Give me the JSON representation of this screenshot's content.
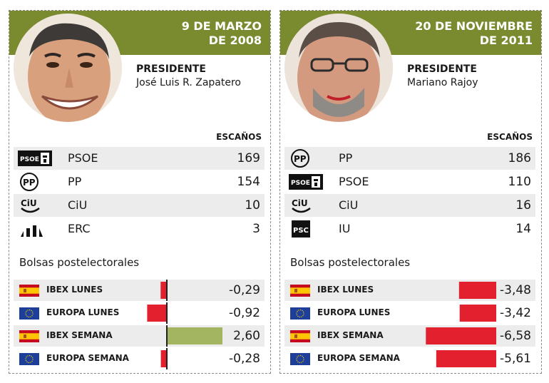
{
  "panels": [
    {
      "date_line1": "9 DE MARZO",
      "date_line2": "DE 2008",
      "president_title": "PRESIDENTE",
      "president_name": "José Luis R. Zapatero",
      "escanos_label": "ESCAÑOS",
      "seats": [
        {
          "party": "PSOE",
          "seats": "169",
          "logo": "psoe-logo"
        },
        {
          "party": "PP",
          "seats": "154",
          "logo": "pp-logo"
        },
        {
          "party": "CiU",
          "seats": "10",
          "logo": "ciu-logo"
        },
        {
          "party": "ERC",
          "seats": "3",
          "logo": "erc-logo"
        }
      ],
      "bolsas_title": "Bolsas postelectorales",
      "markets": [
        {
          "label": "IBEX LUNES",
          "value": -0.29,
          "display": "-0,29",
          "flag": "spain-flag"
        },
        {
          "label": "EUROPA LUNES",
          "value": -0.92,
          "display": "-0,92",
          "flag": "eu-flag"
        },
        {
          "label": "IBEX SEMANA",
          "value": 2.6,
          "display": "2,60",
          "flag": "spain-flag"
        },
        {
          "label": "EUROPA SEMANA",
          "value": -0.28,
          "display": "-0,28",
          "flag": "eu-flag"
        }
      ]
    },
    {
      "date_line1": "20 DE NOVIEMBRE",
      "date_line2": "DE 2011",
      "president_title": "PRESIDENTE",
      "president_name": "Mariano Rajoy",
      "escanos_label": "ESCAÑOS",
      "seats": [
        {
          "party": "PP",
          "seats": "186",
          "logo": "pp-logo"
        },
        {
          "party": "PSOE",
          "seats": "110",
          "logo": "psoe-logo"
        },
        {
          "party": "CiU",
          "seats": "16",
          "logo": "ciu-logo"
        },
        {
          "party": "IU",
          "seats": "14",
          "logo": "psc-logo"
        }
      ],
      "bolsas_title": "Bolsas postelectorales",
      "markets": [
        {
          "label": "IBEX LUNES",
          "value": -3.48,
          "display": "-3,48",
          "flag": "spain-flag"
        },
        {
          "label": "EUROPA LUNES",
          "value": -3.42,
          "display": "-3,42",
          "flag": "eu-flag"
        },
        {
          "label": "IBEX SEMANA",
          "value": -6.58,
          "display": "-6,58",
          "flag": "spain-flag"
        },
        {
          "label": "EUROPA SEMANA",
          "value": -5.61,
          "display": "-5,61",
          "flag": "eu-flag"
        }
      ]
    }
  ],
  "chart_data": [
    {
      "type": "bar",
      "categories": [
        "IBEX LUNES",
        "EUROPA LUNES",
        "IBEX SEMANA",
        "EUROPA SEMANA"
      ],
      "values": [
        -0.29,
        -0.92,
        2.6,
        -0.28
      ],
      "title": "Bolsas postelectorales"
    },
    {
      "type": "bar",
      "categories": [
        "IBEX LUNES",
        "EUROPA LUNES",
        "IBEX SEMANA",
        "EUROPA SEMANA"
      ],
      "values": [
        -3.48,
        -3.42,
        -6.58,
        -5.61
      ],
      "title": "Bolsas postelectorales"
    }
  ],
  "colors": {
    "header": "#7a8a2e",
    "negative": "#e3202e",
    "positive": "#a4b561",
    "row_shade": "#ececec"
  }
}
